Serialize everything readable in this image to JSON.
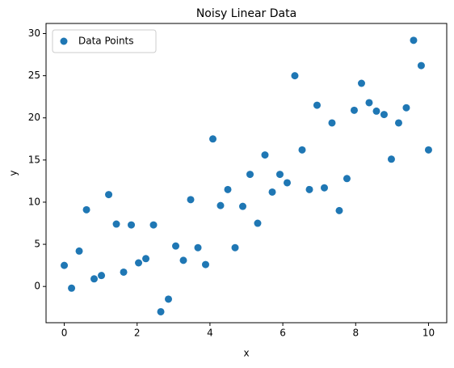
{
  "chart_data": {
    "type": "scatter",
    "title": "Noisy Linear Data",
    "xlabel": "x",
    "ylabel": "y",
    "series": [
      {
        "name": "Data Points",
        "color": "#1f77b4",
        "x": [
          0,
          0.2,
          0.41,
          0.61,
          0.82,
          1.02,
          1.22,
          1.43,
          1.63,
          1.84,
          2.04,
          2.24,
          2.45,
          2.65,
          2.86,
          3.06,
          3.27,
          3.47,
          3.67,
          3.88,
          4.08,
          4.29,
          4.49,
          4.69,
          4.9,
          5.1,
          5.31,
          5.51,
          5.71,
          5.92,
          6.12,
          6.33,
          6.53,
          6.73,
          6.94,
          7.14,
          7.35,
          7.55,
          7.76,
          7.96,
          8.16,
          8.37,
          8.57,
          8.78,
          8.98,
          9.18,
          9.39,
          9.59,
          9.8,
          10
        ],
        "values": [
          2.5,
          -0.2,
          4.2,
          9.1,
          0.9,
          1.3,
          10.9,
          7.4,
          1.7,
          7.3,
          2.8,
          3.3,
          7.3,
          -3.0,
          -1.5,
          4.8,
          3.1,
          10.3,
          4.6,
          2.6,
          17.5,
          9.6,
          11.5,
          4.6,
          9.5,
          13.3,
          7.5,
          15.6,
          11.2,
          13.3,
          12.3,
          25.0,
          16.2,
          11.5,
          21.5,
          11.7,
          19.4,
          9.0,
          12.8,
          20.9,
          24.1,
          21.8,
          20.8,
          20.4,
          15.1,
          19.4,
          21.2,
          29.2,
          26.2,
          16.2
        ]
      }
    ],
    "xlim": [
      -0.5,
      10.5
    ],
    "ylim": [
      -4.3,
      31.2
    ],
    "xticks": [
      0,
      2,
      4,
      6,
      8,
      10
    ],
    "yticks": [
      0,
      5,
      10,
      15,
      20,
      25,
      30
    ],
    "grid": false,
    "legend": "upper left"
  }
}
